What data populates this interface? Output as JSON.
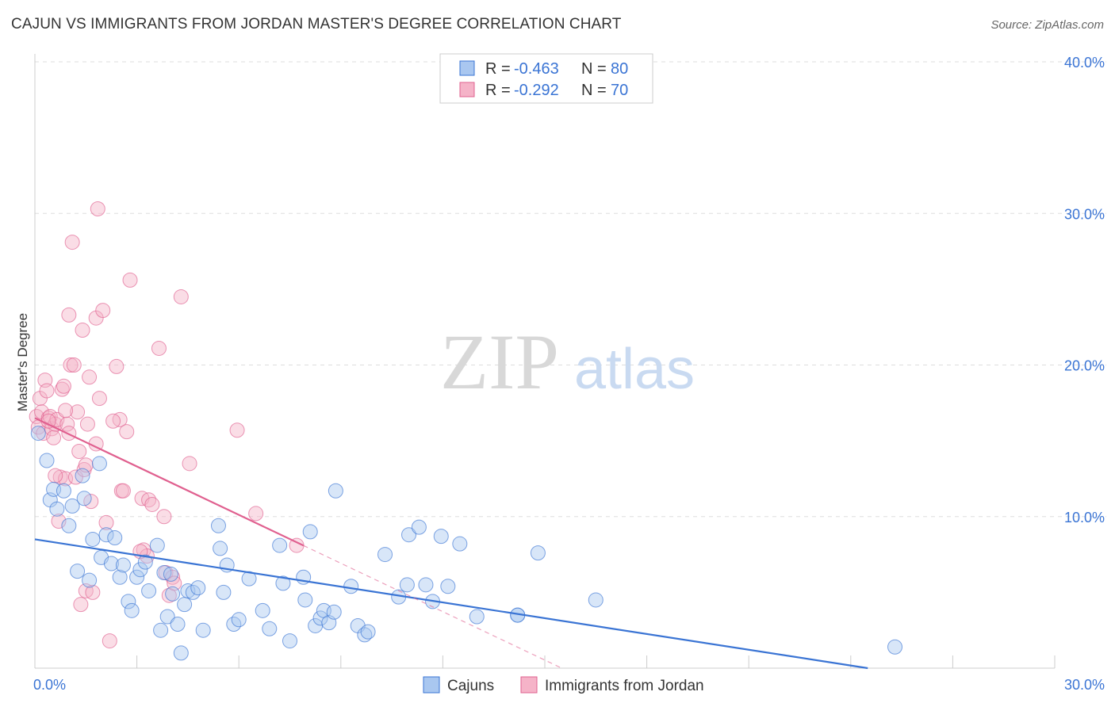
{
  "title": "CAJUN VS IMMIGRANTS FROM JORDAN MASTER'S DEGREE CORRELATION CHART",
  "source": "Source: ZipAtlas.com",
  "watermark": {
    "zip": "ZIP",
    "atlas": "atlas"
  },
  "colors": {
    "blue": "#3a74d4",
    "blue_fill": "#a9c7f0",
    "pink": "#e0608f",
    "pink_fill": "#f5b3c8",
    "grid": "#dddddd",
    "axis_label": "#3a74d4"
  },
  "legend_top": [
    {
      "series": "Cajuns",
      "r_label": "R =",
      "r_value": "-0.463",
      "n_label": "N =",
      "n_value": "80"
    },
    {
      "series": "Immigrants from Jordan",
      "r_label": "R =",
      "r_value": "-0.292",
      "n_label": "N =",
      "n_value": "70"
    }
  ],
  "chart_data": {
    "type": "scatter",
    "title": "CAJUN VS IMMIGRANTS FROM JORDAN MASTER'S DEGREE CORRELATION CHART",
    "xlabel": "",
    "ylabel": "Master's Degree",
    "xlim": [
      0,
      30
    ],
    "ylim": [
      0,
      40
    ],
    "x_tick_labels": [
      "0.0%",
      "30.0%"
    ],
    "y_ticks": [
      10,
      20,
      30,
      40
    ],
    "y_tick_labels": [
      "10.0%",
      "20.0%",
      "30.0%",
      "40.0%"
    ],
    "legend_position": "bottom-center",
    "series": [
      {
        "name": "Cajuns",
        "color": "#3a74d4",
        "trend": {
          "x0": 0,
          "y0": 8.5,
          "x1": 24.5,
          "y1": 0,
          "solid_until": 24.5
        },
        "points": [
          [
            0.1,
            15.5
          ],
          [
            0.35,
            13.7
          ],
          [
            0.45,
            11.1
          ],
          [
            0.55,
            11.8
          ],
          [
            0.65,
            10.5
          ],
          [
            0.85,
            11.7
          ],
          [
            1.0,
            9.4
          ],
          [
            1.1,
            10.7
          ],
          [
            1.4,
            12.7
          ],
          [
            1.45,
            11.2
          ],
          [
            1.25,
            6.4
          ],
          [
            1.6,
            5.8
          ],
          [
            1.7,
            8.5
          ],
          [
            1.9,
            13.5
          ],
          [
            1.95,
            7.3
          ],
          [
            2.1,
            8.8
          ],
          [
            2.25,
            6.9
          ],
          [
            2.35,
            8.6
          ],
          [
            2.5,
            6.0
          ],
          [
            2.6,
            6.8
          ],
          [
            2.75,
            4.4
          ],
          [
            2.85,
            3.8
          ],
          [
            3.0,
            6.0
          ],
          [
            3.1,
            6.5
          ],
          [
            3.25,
            7.0
          ],
          [
            3.35,
            5.1
          ],
          [
            3.6,
            8.1
          ],
          [
            3.7,
            2.5
          ],
          [
            3.8,
            6.3
          ],
          [
            3.9,
            3.4
          ],
          [
            4.0,
            6.2
          ],
          [
            4.05,
            4.9
          ],
          [
            4.2,
            2.9
          ],
          [
            4.3,
            1.0
          ],
          [
            4.4,
            4.2
          ],
          [
            4.5,
            5.1
          ],
          [
            4.65,
            5.0
          ],
          [
            4.8,
            5.3
          ],
          [
            4.95,
            2.5
          ],
          [
            5.4,
            9.4
          ],
          [
            5.45,
            7.9
          ],
          [
            5.55,
            5.0
          ],
          [
            5.65,
            6.8
          ],
          [
            5.85,
            2.9
          ],
          [
            6.0,
            3.2
          ],
          [
            6.3,
            5.9
          ],
          [
            6.7,
            3.8
          ],
          [
            6.9,
            2.6
          ],
          [
            7.2,
            8.1
          ],
          [
            7.3,
            5.6
          ],
          [
            7.5,
            1.8
          ],
          [
            7.9,
            6.0
          ],
          [
            7.95,
            4.5
          ],
          [
            8.1,
            9.0
          ],
          [
            8.25,
            2.8
          ],
          [
            8.4,
            3.3
          ],
          [
            8.5,
            3.8
          ],
          [
            8.65,
            3.0
          ],
          [
            8.8,
            3.7
          ],
          [
            8.85,
            11.7
          ],
          [
            9.3,
            5.4
          ],
          [
            9.5,
            2.8
          ],
          [
            9.7,
            2.2
          ],
          [
            9.8,
            2.4
          ],
          [
            10.3,
            7.5
          ],
          [
            10.7,
            4.7
          ],
          [
            10.95,
            5.5
          ],
          [
            11.0,
            8.8
          ],
          [
            11.3,
            9.3
          ],
          [
            11.5,
            5.5
          ],
          [
            11.7,
            4.4
          ],
          [
            11.95,
            8.7
          ],
          [
            12.15,
            5.4
          ],
          [
            12.5,
            8.2
          ],
          [
            13.0,
            3.4
          ],
          [
            14.2,
            3.5
          ],
          [
            14.8,
            7.6
          ],
          [
            16.5,
            4.5
          ],
          [
            25.3,
            1.4
          ],
          [
            14.2,
            3.5
          ]
        ]
      },
      {
        "name": "Immigrants from Jordan",
        "color": "#e0608f",
        "trend": {
          "x0": 0,
          "y0": 16.5,
          "x1": 15.5,
          "y1": 0,
          "solid_until": 7.9
        },
        "points": [
          [
            0.05,
            16.6
          ],
          [
            0.1,
            15.9
          ],
          [
            0.15,
            17.8
          ],
          [
            0.2,
            16.9
          ],
          [
            0.25,
            15.5
          ],
          [
            0.3,
            19.0
          ],
          [
            0.35,
            18.3
          ],
          [
            0.4,
            16.5
          ],
          [
            0.45,
            16.6
          ],
          [
            0.5,
            15.8
          ],
          [
            0.55,
            15.2
          ],
          [
            0.6,
            16.1
          ],
          [
            0.65,
            16.4
          ],
          [
            0.7,
            9.7
          ],
          [
            0.75,
            12.6
          ],
          [
            0.8,
            18.4
          ],
          [
            0.85,
            18.6
          ],
          [
            0.9,
            12.5
          ],
          [
            0.95,
            16.1
          ],
          [
            1.0,
            23.3
          ],
          [
            1.05,
            20.0
          ],
          [
            1.1,
            28.1
          ],
          [
            1.15,
            20.0
          ],
          [
            1.2,
            12.6
          ],
          [
            1.25,
            16.9
          ],
          [
            1.3,
            14.3
          ],
          [
            1.35,
            4.2
          ],
          [
            1.4,
            22.3
          ],
          [
            1.45,
            13.1
          ],
          [
            1.5,
            5.1
          ],
          [
            1.55,
            16.1
          ],
          [
            1.6,
            19.2
          ],
          [
            1.65,
            11.0
          ],
          [
            1.7,
            5.0
          ],
          [
            1.8,
            23.1
          ],
          [
            1.85,
            30.3
          ],
          [
            1.9,
            17.8
          ],
          [
            2.0,
            23.6
          ],
          [
            2.1,
            9.6
          ],
          [
            2.2,
            1.8
          ],
          [
            2.4,
            19.9
          ],
          [
            2.5,
            16.4
          ],
          [
            2.55,
            11.7
          ],
          [
            2.7,
            15.6
          ],
          [
            2.8,
            25.6
          ],
          [
            3.15,
            11.2
          ],
          [
            3.2,
            7.8
          ],
          [
            3.3,
            7.4
          ],
          [
            3.35,
            11.1
          ],
          [
            3.45,
            10.8
          ],
          [
            3.65,
            21.1
          ],
          [
            3.8,
            10.0
          ],
          [
            3.85,
            6.3
          ],
          [
            3.95,
            4.8
          ],
          [
            4.05,
            6.0
          ],
          [
            4.1,
            5.6
          ],
          [
            4.3,
            24.5
          ],
          [
            4.55,
            13.5
          ],
          [
            5.95,
            15.7
          ],
          [
            6.5,
            10.2
          ],
          [
            7.7,
            8.1
          ],
          [
            2.6,
            11.7
          ],
          [
            1.0,
            15.5
          ],
          [
            0.6,
            12.7
          ],
          [
            1.5,
            13.4
          ],
          [
            0.9,
            17.0
          ],
          [
            3.1,
            7.7
          ],
          [
            2.3,
            16.3
          ],
          [
            1.8,
            14.8
          ],
          [
            0.4,
            16.3
          ]
        ]
      }
    ]
  }
}
